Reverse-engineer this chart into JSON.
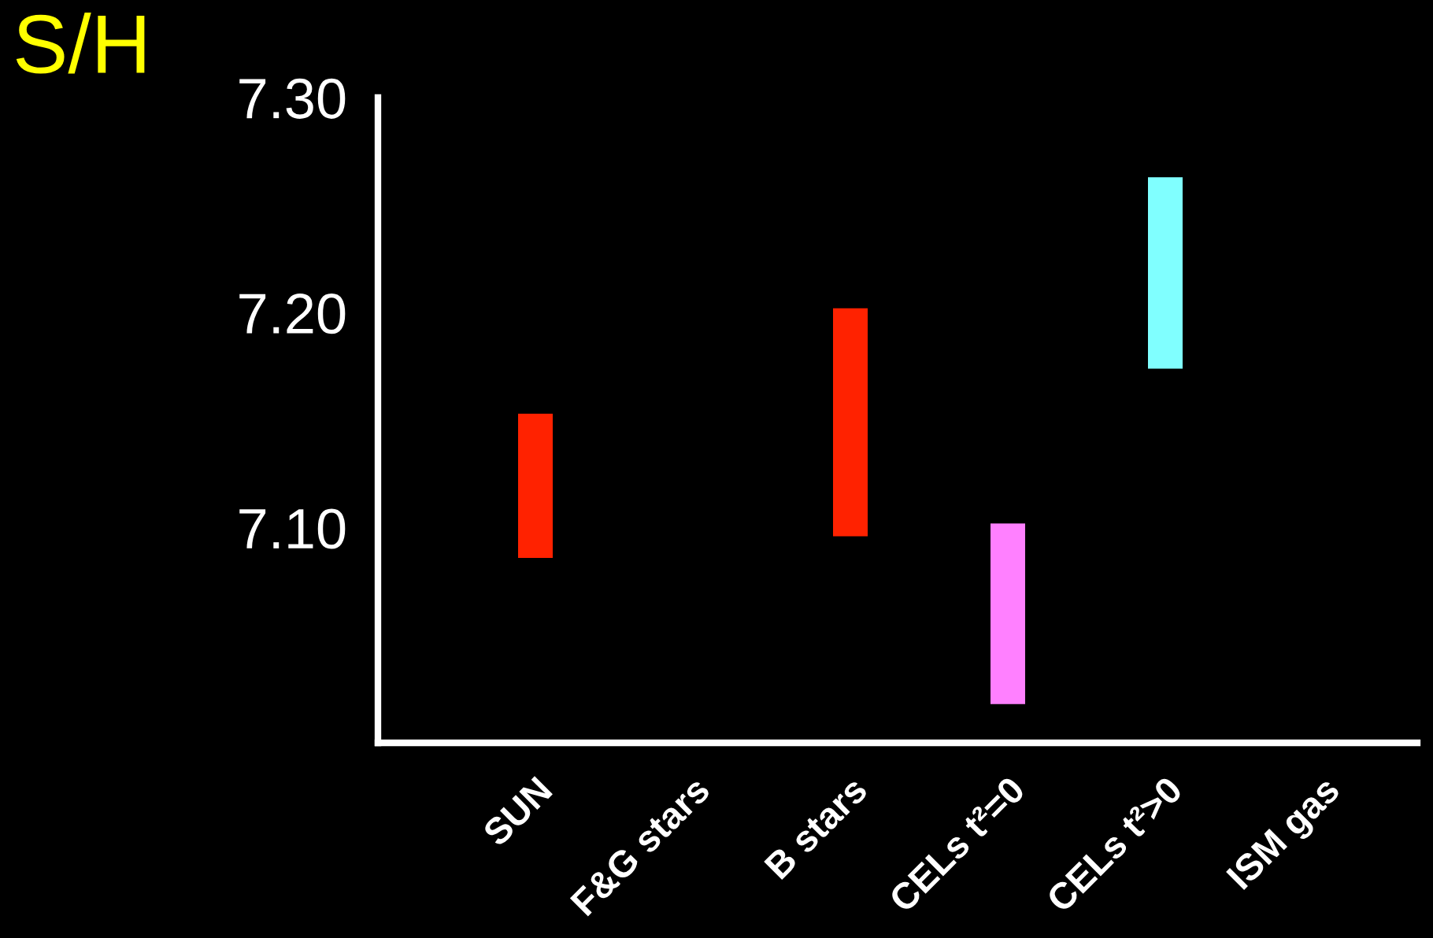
{
  "chart_data": {
    "type": "bar",
    "title": "S/H",
    "categories": [
      "SUN",
      "F&G stars",
      "B stars",
      "CELs t²=0",
      "CELs t²>0",
      "ISM gas"
    ],
    "base": [
      7.086,
      null,
      7.096,
      7.018,
      7.174,
      null
    ],
    "values": [
      0.067,
      null,
      0.106,
      0.084,
      0.089,
      null
    ],
    "colors": [
      "#ff2200",
      null,
      "#ff2200",
      "#ff80ff",
      "#80ffff",
      null
    ],
    "ylim": [
      7.0,
      7.3
    ],
    "yticks": [
      {
        "value": 7.1,
        "label": "7.10"
      },
      {
        "value": 7.2,
        "label": "7.20"
      },
      {
        "value": 7.3,
        "label": "7.30"
      }
    ],
    "grid": false
  }
}
